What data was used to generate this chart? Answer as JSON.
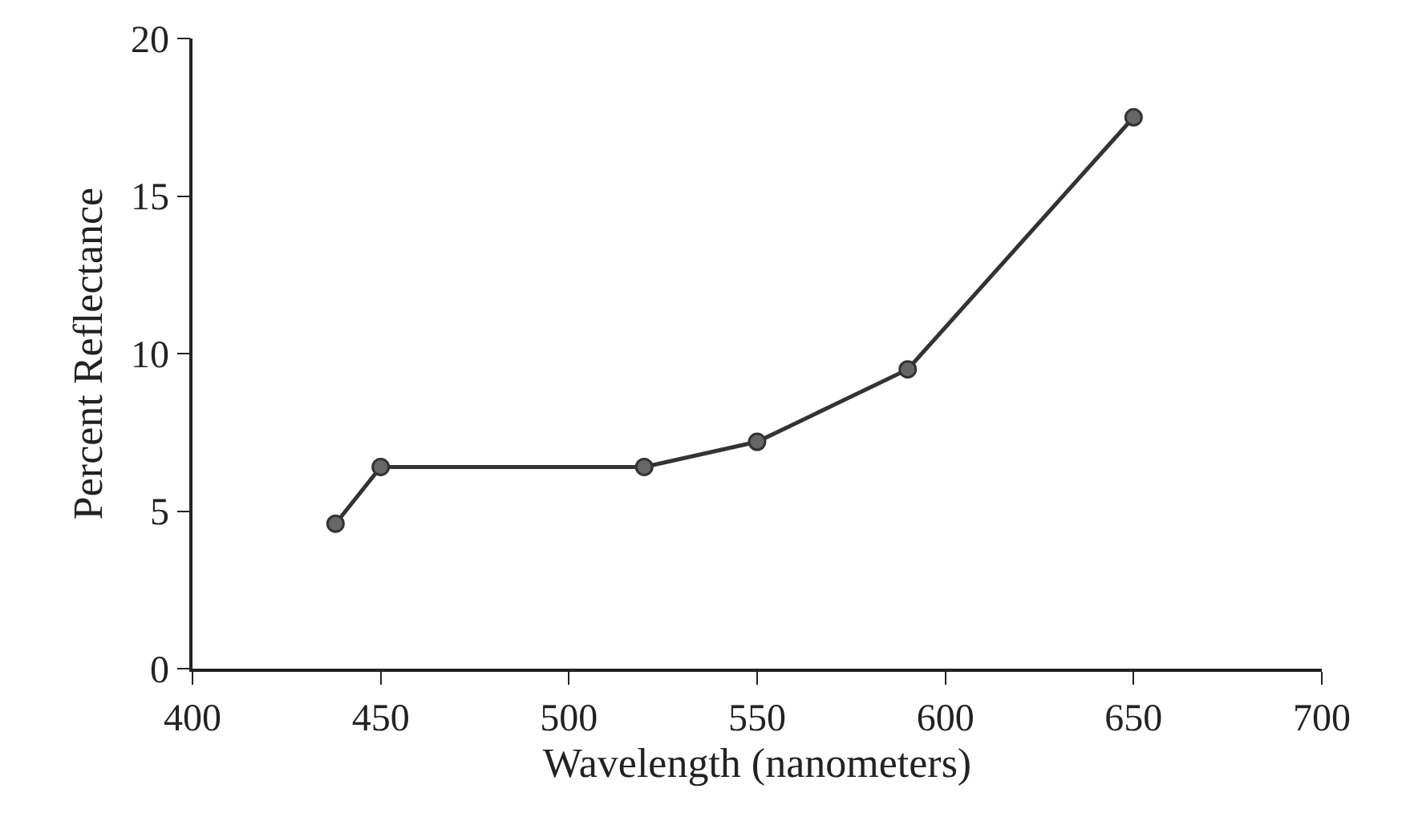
{
  "chart_data": {
    "type": "line",
    "xlabel": "Wavelength (nanometers)",
    "ylabel": "Percent Reflectance",
    "x": [
      438,
      450,
      520,
      550,
      590,
      650
    ],
    "series": [
      {
        "color": "#333333",
        "values": [
          4.6,
          6.4,
          6.4,
          7.2,
          9.5,
          17.5
        ]
      }
    ],
    "xlim": [
      400,
      700
    ],
    "xticks": [
      400,
      450,
      500,
      550,
      600,
      650,
      700
    ],
    "ylim": [
      0,
      20
    ],
    "yticks": [
      0,
      5,
      10,
      15,
      20
    ],
    "marker": "circle",
    "line_style": "solid"
  }
}
